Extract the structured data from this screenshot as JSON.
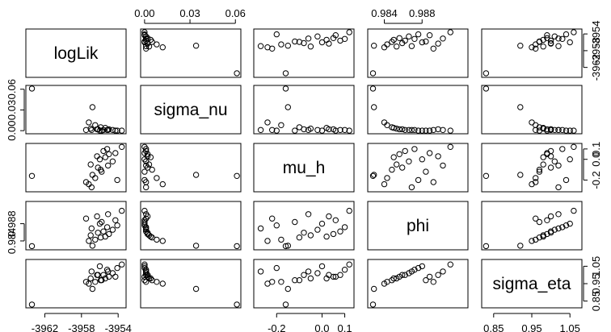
{
  "chart_data": {
    "type": "scatter",
    "variables": [
      "logLik",
      "sigma_nu",
      "mu_h",
      "phi",
      "sigma_eta"
    ],
    "axis_ticks": {
      "logLik": [
        "-3962",
        "-3958",
        "-3954"
      ],
      "sigma_nu": [
        "0.00",
        "0.03",
        "0.06"
      ],
      "mu_h": [
        "-0.2",
        "0.0",
        "0.1"
      ],
      "phi": [
        "0.984",
        "0.988"
      ],
      "sigma_eta": [
        "0.85",
        "0.95",
        "1.05"
      ]
    },
    "ranges": {
      "logLik": [
        -3963.8,
        -3953.4
      ],
      "sigma_nu": [
        -0.001,
        0.062
      ],
      "mu_h": [
        -0.29,
        0.13
      ],
      "phi": [
        0.9825,
        0.9926
      ],
      "sigma_eta": [
        0.825,
        1.075
      ]
    },
    "points": [
      {
        "logLik": -3963.4,
        "sigma_nu": 0.061,
        "mu_h": -0.16,
        "phi": 0.9828,
        "sigma_eta": 0.83
      },
      {
        "logLik": -3956.8,
        "sigma_nu": 0.034,
        "mu_h": -0.15,
        "phi": 0.9829,
        "sigma_eta": 0.92
      },
      {
        "logLik": -3957.2,
        "sigma_nu": 0.012,
        "mu_h": -0.24,
        "phi": 0.984,
        "sigma_eta": 0.95
      },
      {
        "logLik": -3956.5,
        "sigma_nu": 0.008,
        "mu_h": -0.18,
        "phi": 0.9843,
        "sigma_eta": 0.96
      },
      {
        "logLik": -3955.9,
        "sigma_nu": 0.005,
        "mu_h": -0.1,
        "phi": 0.9848,
        "sigma_eta": 0.97
      },
      {
        "logLik": -3955.4,
        "sigma_nu": 0.004,
        "mu_h": 0.02,
        "phi": 0.985,
        "sigma_eta": 0.98
      },
      {
        "logLik": -3957.0,
        "sigma_nu": 0.003,
        "mu_h": -0.05,
        "phi": 0.9853,
        "sigma_eta": 0.98
      },
      {
        "logLik": -3955.0,
        "sigma_nu": 0.002,
        "mu_h": 0.05,
        "phi": 0.9856,
        "sigma_eta": 0.99
      },
      {
        "logLik": -3956.2,
        "sigma_nu": 0.002,
        "mu_h": -0.08,
        "phi": 0.9859,
        "sigma_eta": 1.0
      },
      {
        "logLik": -3955.6,
        "sigma_nu": 0.001,
        "mu_h": 0.08,
        "phi": 0.9862,
        "sigma_eta": 1.0
      },
      {
        "logLik": -3954.6,
        "sigma_nu": 0.001,
        "mu_h": -0.02,
        "phi": 0.9866,
        "sigma_eta": 1.01
      },
      {
        "logLik": -3956.9,
        "sigma_nu": 0.001,
        "mu_h": -0.27,
        "phi": 0.9869,
        "sigma_eta": 1.02
      },
      {
        "logLik": -3955.2,
        "sigma_nu": 0.001,
        "mu_h": 0.1,
        "phi": 0.9872,
        "sigma_eta": 1.03
      },
      {
        "logLik": -3954.1,
        "sigma_nu": 0.0,
        "mu_h": -0.2,
        "phi": 0.9876,
        "sigma_eta": 1.04
      },
      {
        "logLik": -3956.0,
        "sigma_nu": 0.0,
        "mu_h": 0.0,
        "phi": 0.988,
        "sigma_eta": 1.05
      },
      {
        "logLik": -3955.8,
        "sigma_nu": 0.0,
        "mu_h": -0.12,
        "phi": 0.9884,
        "sigma_eta": 0.97
      },
      {
        "logLik": -3954.3,
        "sigma_nu": 0.0,
        "mu_h": 0.06,
        "phi": 0.9888,
        "sigma_eta": 0.99
      },
      {
        "logLik": -3957.5,
        "sigma_nu": 0.001,
        "mu_h": -0.22,
        "phi": 0.9892,
        "sigma_eta": 0.96
      },
      {
        "logLik": -3956.3,
        "sigma_nu": 0.002,
        "mu_h": 0.03,
        "phi": 0.9897,
        "sigma_eta": 1.0
      },
      {
        "logLik": -3955.1,
        "sigma_nu": 0.001,
        "mu_h": -0.06,
        "phi": 0.9902,
        "sigma_eta": 1.02
      },
      {
        "logLik": -3953.6,
        "sigma_nu": 0.0,
        "mu_h": 0.12,
        "phi": 0.991,
        "sigma_eta": 1.06
      }
    ]
  }
}
